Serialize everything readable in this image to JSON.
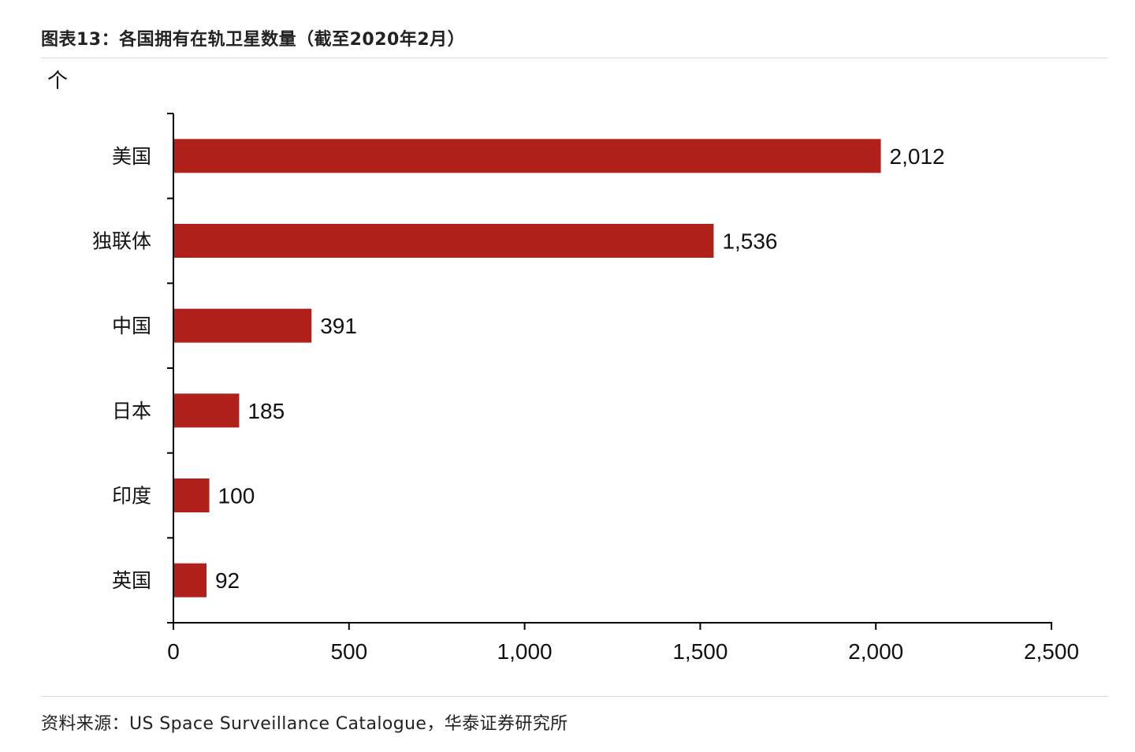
{
  "figure": {
    "title": "图表13：各国拥有在轨卫星数量（截至2020年2月）",
    "unit": "个",
    "source": "资料来源：US Space Surveillance Catalogue，华泰证券研究所"
  },
  "chart_data": {
    "type": "bar",
    "orientation": "horizontal",
    "categories": [
      "美国",
      "独联体",
      "中国",
      "日本",
      "印度",
      "英国"
    ],
    "values": [
      2012,
      1536,
      391,
      185,
      100,
      92
    ],
    "value_labels": [
      "2,012",
      "1,536",
      "391",
      "185",
      "100",
      "92"
    ],
    "xlim": [
      0,
      2500
    ],
    "x_ticks": [
      0,
      500,
      1000,
      1500,
      2000,
      2500
    ],
    "x_tick_labels": [
      "0",
      "500",
      "1,000",
      "1,500",
      "2,000",
      "2,500"
    ],
    "bar_color": "#b0211c",
    "grid": false,
    "legend": "none"
  }
}
